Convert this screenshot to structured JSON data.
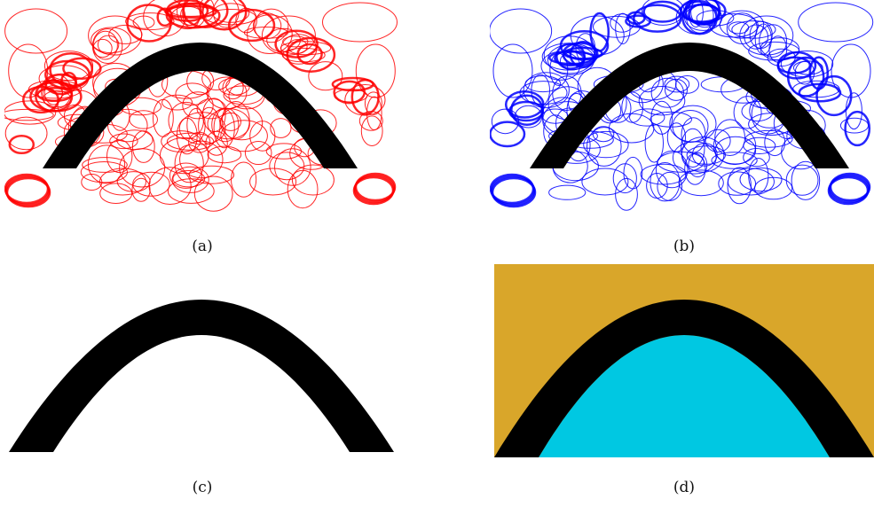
{
  "panels": [
    {
      "caption": "(a)",
      "ellipse_color": "#ff0000",
      "arch_color": "#000000"
    },
    {
      "caption": "(b)",
      "ellipse_color": "#0000ff",
      "arch_color": "#000000"
    },
    {
      "caption": "(c)",
      "arch_color": "#000000"
    },
    {
      "caption": "(d)",
      "arch_color": "#000000",
      "outer_region_color": "#d9a62a",
      "inner_region_color": "#00c8e2"
    }
  ]
}
